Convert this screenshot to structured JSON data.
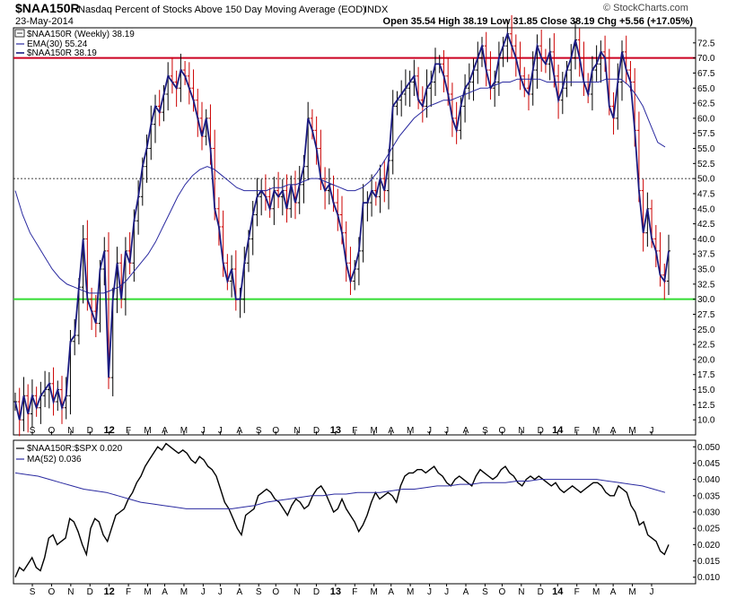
{
  "header": {
    "symbol": "$NAA150R",
    "description": "Nasdaq Percent of Stocks Above 150 Day Moving Average (EOD)",
    "exchange": "INDX",
    "date": "23-May-2014",
    "ohlc_text": "Open 35.54  High 38.19  Low 31.85  Close 38.19  Chg +5.56 (+17.05%)",
    "watermark": "© StockCharts.com"
  },
  "legend_main": {
    "title": "$NAA150R (Weekly) 38.19",
    "ema": "EMA(30) 55.24",
    "price": "$NAA150R 38.19"
  },
  "legend_lower": {
    "ratio": "$NAA150R:$SPX 0.020",
    "ma": "MA(52) 0.036"
  },
  "colors": {
    "price_line": "#1a1a80",
    "ema_line": "#2a2aa0",
    "up_bar": "#000000",
    "down_bar": "#cc0000",
    "overbought_line": "#cc0022",
    "oversold_line": "#33dd33",
    "mid_line": "#000000",
    "ratio_line": "#000000",
    "ma_line": "#2a2aa0"
  },
  "chart_data": [
    {
      "type": "ohlc-line",
      "title": "$NAA150R Nasdaq Percent of Stocks Above 150 Day Moving Average (EOD)",
      "ylim": [
        7.5,
        75
      ],
      "yticks": [
        10.0,
        12.5,
        15.0,
        17.5,
        20.0,
        22.5,
        25.0,
        27.5,
        30.0,
        32.5,
        35.0,
        37.5,
        40.0,
        42.5,
        45.0,
        47.5,
        50.0,
        52.5,
        55.0,
        57.5,
        60.0,
        62.5,
        65.0,
        67.5,
        70.0,
        72.5
      ],
      "x_labels": [
        "S",
        "O",
        "N",
        "D",
        "12",
        "F",
        "M",
        "A",
        "M",
        "J",
        "J",
        "A",
        "S",
        "O",
        "N",
        "D",
        "13",
        "F",
        "M",
        "A",
        "M",
        "J",
        "J",
        "A",
        "S",
        "O",
        "N",
        "D",
        "14",
        "F",
        "M",
        "A",
        "M",
        "J"
      ],
      "x_label_weeks": [
        4,
        8.5,
        13,
        17.5,
        22,
        26.5,
        31,
        35,
        39.5,
        44,
        48,
        52.5,
        57,
        61,
        66,
        70.5,
        75,
        79.5,
        84,
        88,
        92.5,
        97,
        101,
        105.5,
        110,
        114,
        118.5,
        123,
        127,
        131.5,
        136,
        140,
        144.5,
        149
      ],
      "bold_labels": [
        "12",
        "13",
        "14"
      ],
      "reference_lines": [
        70.0,
        50.0,
        30.0
      ],
      "series": [
        {
          "name": "$NAA150R",
          "close": [
            13,
            10,
            14,
            11,
            14,
            12,
            14,
            15,
            16,
            13,
            15,
            12,
            14,
            23,
            24,
            32,
            40,
            30,
            28,
            26,
            35,
            38,
            17,
            30,
            36,
            30,
            38,
            36,
            43,
            47,
            52,
            55,
            59,
            62,
            61,
            64,
            67,
            66,
            65,
            68,
            67,
            65,
            63,
            60,
            57,
            60,
            55,
            45,
            42,
            36,
            33,
            35,
            30,
            30,
            36,
            40,
            44,
            47,
            48,
            47,
            45,
            48,
            47,
            48,
            45,
            49,
            46,
            49,
            52,
            60,
            58,
            55,
            50,
            48,
            49,
            46,
            44,
            41,
            36,
            33,
            35,
            38,
            46,
            46,
            48,
            47,
            50,
            48,
            53,
            62,
            63,
            64,
            65,
            66,
            67,
            63,
            62,
            65,
            66,
            69,
            69,
            67,
            64,
            60,
            58,
            62,
            65,
            66,
            68,
            70,
            72,
            68,
            65,
            66,
            70,
            72,
            74,
            72,
            70,
            67,
            65,
            64,
            68,
            72,
            70,
            69,
            71,
            67,
            63,
            65,
            68,
            70,
            73,
            70,
            66,
            64,
            68,
            69,
            71,
            70,
            62,
            60,
            66,
            71,
            68,
            66,
            58,
            48,
            41,
            45,
            40,
            38,
            34,
            33,
            38
          ]
        },
        {
          "name": "EMA(30)",
          "values": [
            48,
            44,
            41,
            39,
            37,
            35,
            33.5,
            32.5,
            32,
            31.5,
            31,
            31,
            31,
            31.5,
            32,
            33,
            34.5,
            36,
            37.5,
            39.5,
            42,
            44.5,
            47,
            49,
            50.5,
            51.5,
            52,
            51.5,
            50.5,
            49.5,
            48.5,
            48,
            48,
            48,
            48,
            48.5,
            48.5,
            49,
            49,
            49.5,
            50,
            50,
            49.5,
            49,
            48.5,
            48,
            48,
            48.5,
            49.5,
            51,
            53,
            55,
            57,
            58.5,
            60,
            61,
            62,
            62.5,
            63,
            63,
            63.5,
            64,
            64.5,
            65,
            65,
            65.5,
            66,
            66,
            66.5,
            66.5,
            66.5,
            66.5,
            66,
            66,
            66,
            66,
            66,
            66,
            66,
            66,
            66.5,
            66.5,
            66.5,
            65.5,
            64,
            62,
            59,
            56,
            55.24
          ]
        }
      ]
    },
    {
      "type": "line",
      "title": "$NAA150R:$SPX",
      "ylim": [
        0.008,
        0.052
      ],
      "yticks": [
        0.01,
        0.015,
        0.02,
        0.025,
        0.03,
        0.035,
        0.04,
        0.045,
        0.05
      ],
      "series": [
        {
          "name": "$NAA150R:$SPX",
          "values": [
            0.01,
            0.013,
            0.012,
            0.014,
            0.016,
            0.013,
            0.012,
            0.016,
            0.022,
            0.023,
            0.02,
            0.021,
            0.022,
            0.028,
            0.027,
            0.024,
            0.02,
            0.017,
            0.025,
            0.028,
            0.027,
            0.023,
            0.021,
            0.025,
            0.029,
            0.03,
            0.031,
            0.034,
            0.036,
            0.039,
            0.041,
            0.044,
            0.046,
            0.048,
            0.05,
            0.049,
            0.051,
            0.05,
            0.049,
            0.048,
            0.049,
            0.048,
            0.046,
            0.045,
            0.047,
            0.046,
            0.044,
            0.043,
            0.041,
            0.037,
            0.033,
            0.031,
            0.028,
            0.025,
            0.023,
            0.029,
            0.03,
            0.031,
            0.035,
            0.036,
            0.037,
            0.036,
            0.034,
            0.033,
            0.031,
            0.029,
            0.032,
            0.034,
            0.033,
            0.031,
            0.032,
            0.035,
            0.037,
            0.038,
            0.036,
            0.033,
            0.03,
            0.031,
            0.034,
            0.031,
            0.029,
            0.027,
            0.024,
            0.026,
            0.029,
            0.033,
            0.036,
            0.034,
            0.035,
            0.036,
            0.035,
            0.033,
            0.038,
            0.041,
            0.042,
            0.042,
            0.043,
            0.043,
            0.042,
            0.043,
            0.044,
            0.042,
            0.041,
            0.039,
            0.038,
            0.04,
            0.041,
            0.04,
            0.039,
            0.038,
            0.041,
            0.043,
            0.042,
            0.041,
            0.04,
            0.041,
            0.043,
            0.044,
            0.042,
            0.041,
            0.039,
            0.038,
            0.04,
            0.041,
            0.04,
            0.041,
            0.04,
            0.039,
            0.038,
            0.039,
            0.037,
            0.036,
            0.037,
            0.038,
            0.037,
            0.036,
            0.037,
            0.038,
            0.039,
            0.039,
            0.038,
            0.036,
            0.035,
            0.035,
            0.038,
            0.037,
            0.036,
            0.032,
            0.03,
            0.026,
            0.027,
            0.023,
            0.022,
            0.021,
            0.018,
            0.017,
            0.02
          ]
        },
        {
          "name": "MA(52)",
          "values": [
            0.042,
            0.0415,
            0.041,
            0.04,
            0.039,
            0.038,
            0.037,
            0.0365,
            0.036,
            0.035,
            0.034,
            0.033,
            0.0325,
            0.032,
            0.0315,
            0.031,
            0.031,
            0.031,
            0.031,
            0.031,
            0.0315,
            0.032,
            0.033,
            0.0335,
            0.034,
            0.0345,
            0.035,
            0.035,
            0.0355,
            0.0355,
            0.036,
            0.036,
            0.036,
            0.0365,
            0.037,
            0.037,
            0.0375,
            0.038,
            0.038,
            0.0385,
            0.0385,
            0.039,
            0.039,
            0.039,
            0.0395,
            0.0395,
            0.04,
            0.04,
            0.04,
            0.04,
            0.04,
            0.04,
            0.0395,
            0.039,
            0.0385,
            0.038,
            0.037,
            0.036
          ]
        }
      ]
    }
  ]
}
